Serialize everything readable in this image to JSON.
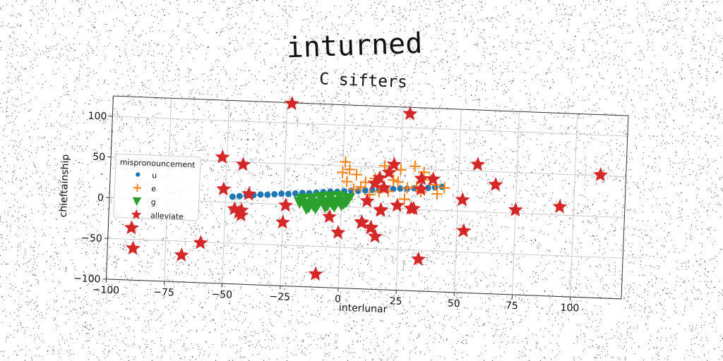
{
  "title": "inturned",
  "chart_data": {
    "type": "scatter",
    "subtitle": "C sifters",
    "xlabel": "interlunar",
    "ylabel": "chieftainship",
    "xlim": [
      -100,
      122
    ],
    "ylim": [
      -100,
      125
    ],
    "xticks": [
      -100,
      -75,
      -50,
      -25,
      0,
      25,
      50,
      75,
      100
    ],
    "yticks": [
      -100,
      -50,
      0,
      50,
      100
    ],
    "grid": true,
    "legend": {
      "title": "mispronouncement",
      "placement": "center-left"
    },
    "series": [
      {
        "name": "u",
        "marker": "circle",
        "color": "#1f77b4",
        "x": [
          -47,
          -44,
          -41,
          -38,
          -35,
          -32,
          -29,
          -26,
          -23,
          -20,
          -17,
          -14,
          -11,
          -8,
          -5,
          -2,
          1,
          4,
          7,
          10,
          13,
          16,
          19,
          22,
          25,
          28,
          31,
          34,
          37,
          40,
          43
        ],
        "y": [
          7,
          8,
          9,
          10,
          11,
          11,
          12,
          13,
          13,
          14,
          15,
          15,
          16,
          17,
          18,
          18,
          19,
          20,
          20,
          21,
          22,
          22,
          23,
          24,
          25,
          25,
          26,
          27,
          27,
          28,
          29
        ]
      },
      {
        "name": "e",
        "marker": "plus",
        "color": "#ff7f0e",
        "x": [
          1,
          3,
          6,
          10,
          14,
          18,
          22,
          25,
          28,
          31,
          34,
          38,
          41,
          44,
          0,
          5,
          12,
          20,
          27,
          32,
          40,
          2,
          8,
          16,
          24,
          35
        ],
        "y": [
          55,
          46,
          40,
          31,
          36,
          52,
          35,
          48,
          26,
          53,
          22,
          37,
          20,
          28,
          42,
          22,
          16,
          21,
          12,
          28,
          31,
          31,
          25,
          20,
          33,
          46
        ],
        "xc": []
      },
      {
        "name": "g",
        "marker": "triangle-down",
        "color": "#2ca02c",
        "x": [
          -18,
          -16,
          -14,
          -12,
          -10,
          -8,
          -6,
          -4,
          -2,
          0,
          2,
          -17,
          -13,
          -9,
          -5,
          -1,
          3,
          -15,
          -11,
          -7,
          -3,
          1
        ],
        "y": [
          3,
          1,
          -2,
          0,
          2,
          4,
          1,
          3,
          5,
          2,
          6,
          7,
          8,
          10,
          11,
          12,
          10,
          -4,
          -3,
          -1,
          0,
          4
        ]
      },
      {
        "name": "alleviate",
        "marker": "star",
        "color": "#d62728",
        "x": [
          -23,
          28,
          -52,
          -43,
          111,
          58,
          66,
          -51,
          -40,
          34,
          30,
          75,
          94,
          17,
          -24,
          -43,
          -44,
          -46,
          -43,
          -25,
          -5,
          -1,
          9,
          13,
          15,
          17,
          18,
          11,
          14,
          20,
          24,
          31,
          39,
          34,
          52,
          53,
          -90,
          -89,
          -68,
          -60,
          -10,
          34,
          9,
          16,
          22,
          13
        ],
        "y": [
          124,
          117,
          55,
          47,
          51,
          58,
          34,
          16,
          11,
          38,
          1,
          4,
          10,
          -3,
          -1,
          -9,
          -12,
          -8,
          -15,
          -22,
          -13,
          -32,
          -19,
          -24,
          -35,
          -2,
          25,
          8,
          30,
          44,
          4,
          1,
          38,
          -61,
          14,
          -24,
          -36,
          -61,
          -67,
          -51,
          -84,
          25,
          -18,
          37,
          54,
          -25
        ]
      }
    ]
  }
}
